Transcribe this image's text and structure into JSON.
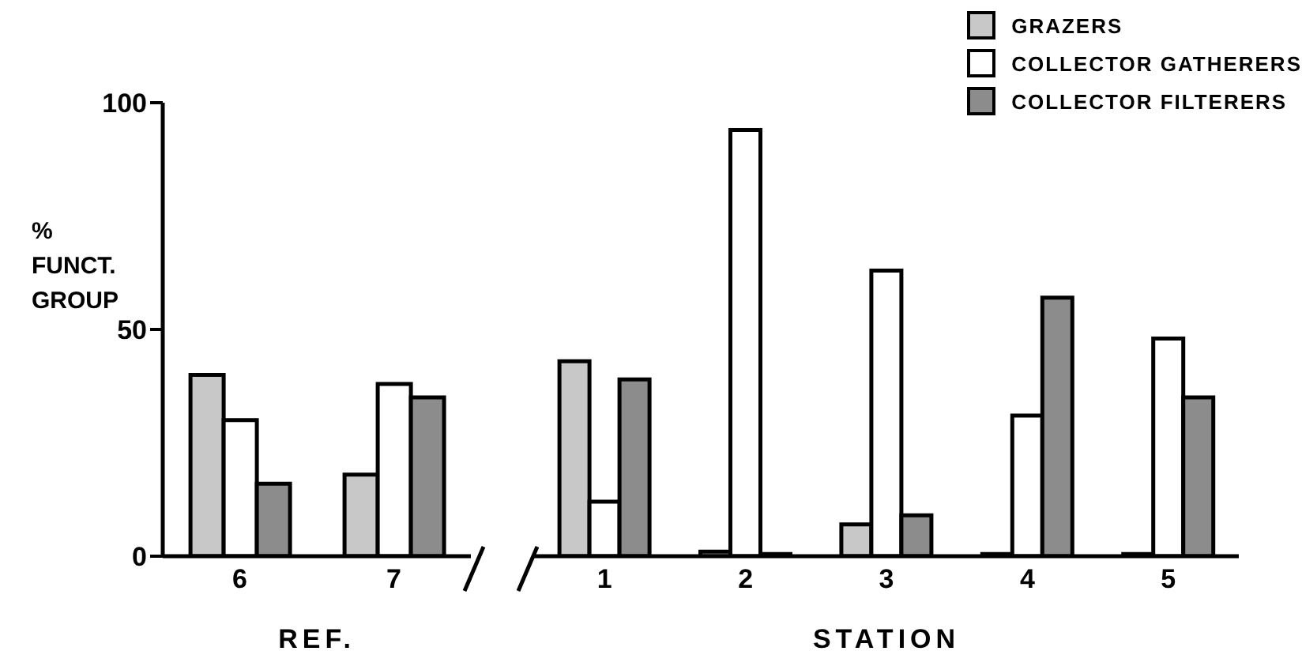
{
  "chart_data": [
    {
      "type": "bar",
      "ylabel": "% FUNCT. GROUP",
      "xlabel": "REF.",
      "categories": [
        "6",
        "7"
      ],
      "ylim": [
        0,
        100
      ],
      "yticks": [
        0,
        50,
        100
      ],
      "grid": false,
      "legend": false,
      "series": [
        {
          "color": "#c8c8c8",
          "values": [
            40,
            18
          ]
        },
        {
          "color": "#ffffff",
          "values": [
            30,
            38
          ]
        },
        {
          "color": "#8c8c8c",
          "values": [
            16,
            35
          ]
        }
      ]
    },
    {
      "type": "bar",
      "xlabel": "STATION",
      "categories": [
        "1",
        "2",
        "3",
        "4",
        "5"
      ],
      "ylim": [
        0,
        100
      ],
      "yticks": [
        0,
        50,
        100
      ],
      "tick_labels": "x",
      "grid": false,
      "legend": "top right",
      "series": [
        {
          "name": "GRAZERS",
          "color": "#c8c8c8",
          "values": [
            43,
            1,
            7,
            0.5,
            0.5
          ]
        },
        {
          "name": "COLLECTOR GATHERERS",
          "color": "#ffffff",
          "values": [
            12,
            94,
            63,
            31,
            48
          ]
        },
        {
          "name": "COLLECTOR FILTERERS",
          "color": "#8c8c8c",
          "values": [
            39,
            0.5,
            9,
            57,
            35
          ]
        }
      ]
    }
  ]
}
